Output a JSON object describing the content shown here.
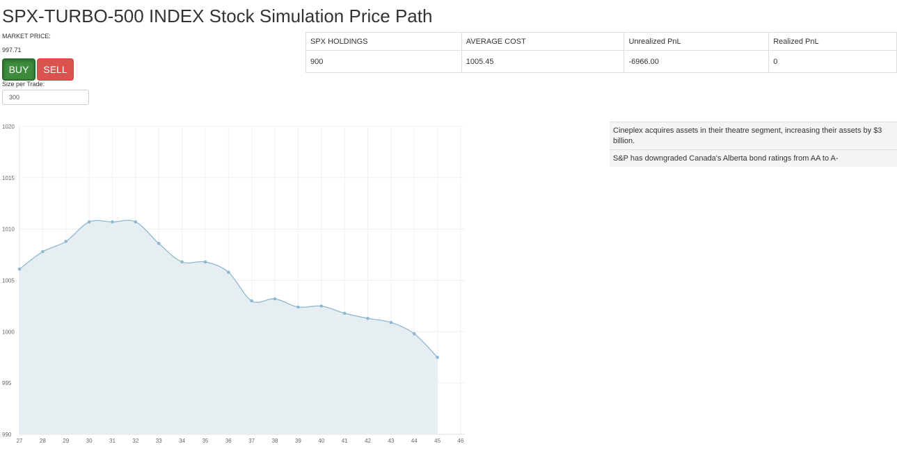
{
  "title": "SPX-TURBO-500 INDEX Stock Simulation Price Path",
  "market": {
    "label": "MARKET PRICE:",
    "price": "997.71"
  },
  "buttons": {
    "buy": "BUY",
    "sell": "SELL"
  },
  "trade_size": {
    "label": "Size per Trade:",
    "value": "300"
  },
  "holdings_table": {
    "headers": [
      "SPX HOLDINGS",
      "AVERAGE COST",
      "Unrealized PnL",
      "Realized PnL"
    ],
    "row": [
      "900",
      "1005.45",
      "-6966.00",
      "0"
    ]
  },
  "news": [
    "Cineplex acquires assets in their theatre segment, increasing their assets by $3 billion.",
    "S&P has downgraded Canada's Alberta bond ratings from AA to A-"
  ],
  "colors": {
    "buy": "#3d8b3d",
    "sell": "#d9534f",
    "line": "#8fb8d0",
    "area": "#e6eef2"
  },
  "chart_data": {
    "type": "area",
    "x": [
      27,
      28,
      29,
      30,
      31,
      32,
      33,
      34,
      35,
      36,
      37,
      38,
      39,
      40,
      41,
      42,
      43,
      44,
      45
    ],
    "values": [
      1006.1,
      1007.8,
      1008.8,
      1010.7,
      1010.7,
      1010.7,
      1008.6,
      1006.8,
      1006.8,
      1005.8,
      1003.0,
      1003.2,
      1002.4,
      1002.5,
      1001.8,
      1001.3,
      1000.9,
      999.8,
      997.5
    ],
    "xlim": [
      27,
      46
    ],
    "ylim": [
      990,
      1020
    ],
    "x_ticks": [
      27,
      28,
      29,
      30,
      31,
      32,
      33,
      34,
      35,
      36,
      37,
      38,
      39,
      40,
      41,
      42,
      43,
      44,
      45,
      46
    ],
    "y_ticks": [
      990,
      995,
      1000,
      1005,
      1010,
      1015,
      1020
    ],
    "grid": true,
    "title": "",
    "xlabel": "",
    "ylabel": ""
  }
}
